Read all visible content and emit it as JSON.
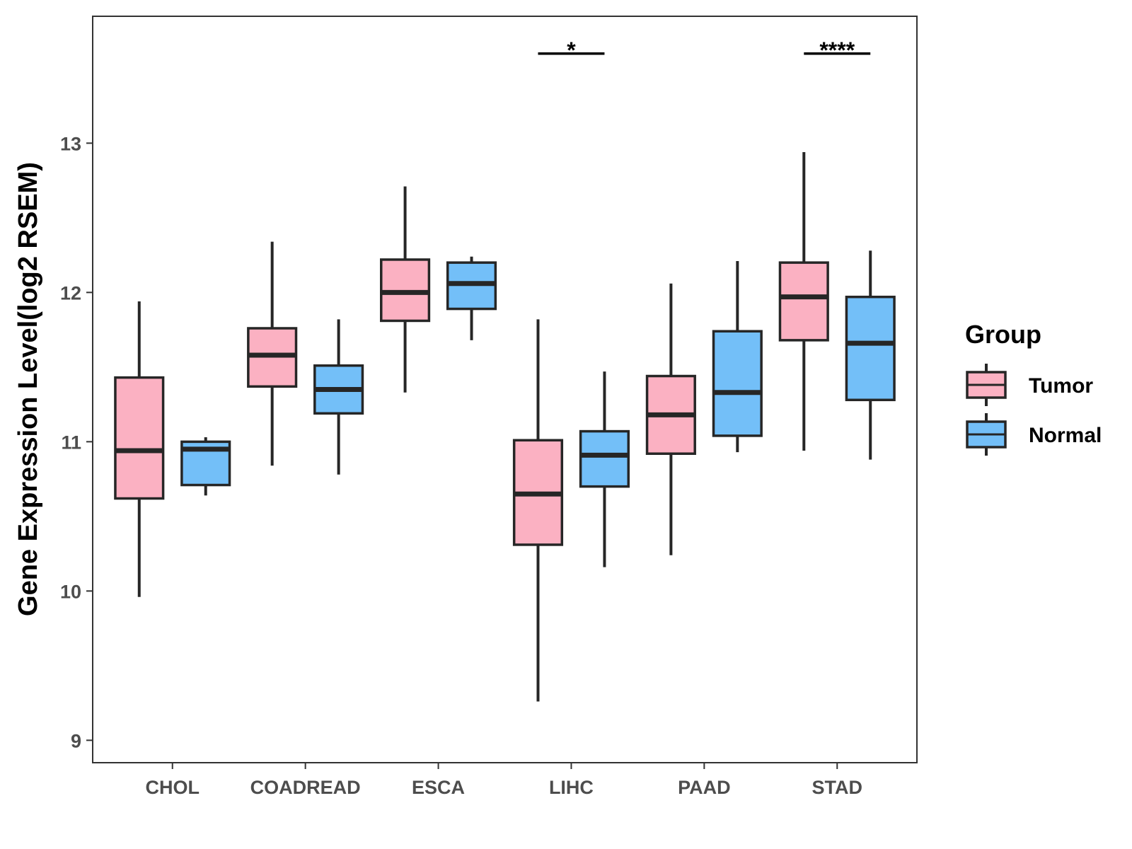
{
  "chart_data": {
    "type": "box",
    "ylabel": "Gene Expression Level(log2 RSEM)",
    "xlabel": "",
    "ylim": [
      8.85,
      13.85
    ],
    "yticks": [
      9,
      10,
      11,
      12,
      13
    ],
    "grid": false,
    "legend": {
      "title": "Group",
      "position": "right",
      "entries": [
        {
          "name": "Tumor",
          "color": "#fbb1c2"
        },
        {
          "name": "Normal",
          "color": "#73bff8"
        }
      ]
    },
    "categories": [
      "CHOL",
      "COADREAD",
      "ESCA",
      "LIHC",
      "PAAD",
      "STAD"
    ],
    "series": [
      {
        "name": "Tumor",
        "color": "#fbb1c2",
        "boxes": [
          {
            "min": 9.96,
            "q1": 10.62,
            "median": 10.94,
            "q3": 11.43,
            "max": 11.94
          },
          {
            "min": 10.84,
            "q1": 11.37,
            "median": 11.58,
            "q3": 11.76,
            "max": 12.34
          },
          {
            "min": 11.33,
            "q1": 11.81,
            "median": 12.0,
            "q3": 12.22,
            "max": 12.71
          },
          {
            "min": 9.26,
            "q1": 10.31,
            "median": 10.65,
            "q3": 11.01,
            "max": 11.82
          },
          {
            "min": 10.24,
            "q1": 10.92,
            "median": 11.18,
            "q3": 11.44,
            "max": 12.06
          },
          {
            "min": 10.94,
            "q1": 11.68,
            "median": 11.97,
            "q3": 12.2,
            "max": 12.94
          }
        ]
      },
      {
        "name": "Normal",
        "color": "#73bff8",
        "boxes": [
          {
            "min": 10.64,
            "q1": 10.71,
            "median": 10.95,
            "q3": 11.0,
            "max": 11.03
          },
          {
            "min": 10.78,
            "q1": 11.19,
            "median": 11.35,
            "q3": 11.51,
            "max": 11.82
          },
          {
            "min": 11.68,
            "q1": 11.89,
            "median": 12.06,
            "q3": 12.2,
            "max": 12.24
          },
          {
            "min": 10.16,
            "q1": 10.7,
            "median": 10.91,
            "q3": 11.07,
            "max": 11.47
          },
          {
            "min": 10.93,
            "q1": 11.04,
            "median": 11.33,
            "q3": 11.74,
            "max": 12.21
          },
          {
            "min": 10.88,
            "q1": 11.28,
            "median": 11.66,
            "q3": 11.97,
            "max": 12.28
          }
        ]
      }
    ],
    "annotations": [
      {
        "category": "LIHC",
        "label": "*",
        "y": 13.6
      },
      {
        "category": "STAD",
        "label": "****",
        "y": 13.6
      }
    ]
  }
}
